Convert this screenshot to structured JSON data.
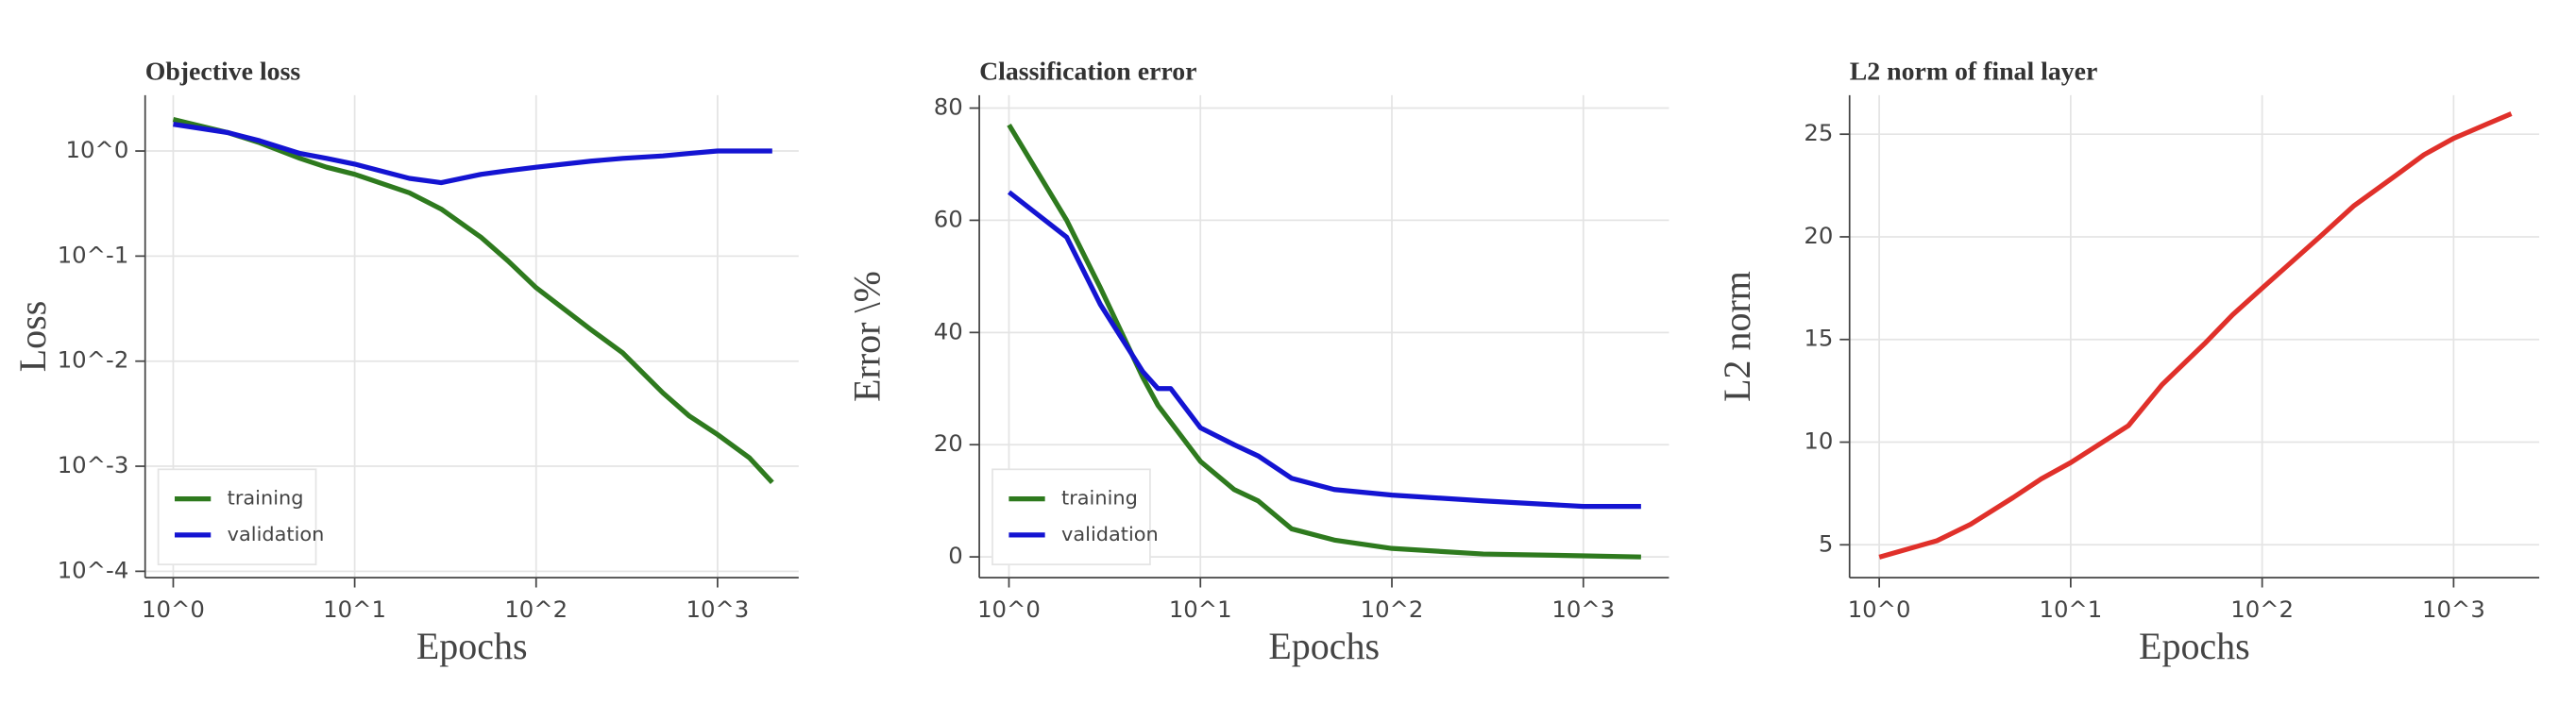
{
  "chart_data": [
    {
      "type": "line",
      "title": "Objective loss",
      "x_label": "Epochs",
      "y_label": "Loss",
      "x": [
        1,
        2,
        3,
        5,
        7,
        10,
        20,
        30,
        50,
        70,
        100,
        200,
        300,
        500,
        700,
        1000,
        1500,
        2000
      ],
      "series": [
        {
          "name": "training",
          "color": "#2e7a1e",
          "values": [
            2.0,
            1.5,
            1.2,
            0.85,
            0.7,
            0.6,
            0.4,
            0.28,
            0.15,
            0.09,
            0.05,
            0.02,
            0.012,
            0.005,
            0.003,
            0.002,
            0.0012,
            0.0007
          ]
        },
        {
          "name": "validation",
          "color": "#1414d2",
          "values": [
            1.8,
            1.5,
            1.25,
            0.95,
            0.85,
            0.75,
            0.55,
            0.5,
            0.6,
            0.65,
            0.7,
            0.8,
            0.85,
            0.9,
            0.95,
            1.0,
            1.0,
            1.0
          ]
        }
      ],
      "xscale": "log",
      "yscale": "log",
      "xlim": [
        0.7,
        2800
      ],
      "ylim": [
        8.7e-05,
        3.4
      ],
      "xticks": [
        {
          "value": 1,
          "label": "10^0"
        },
        {
          "value": 10,
          "label": "10^1"
        },
        {
          "value": 100,
          "label": "10^2"
        },
        {
          "value": 1000,
          "label": "10^3"
        }
      ],
      "yticks": [
        {
          "value": 0.0001,
          "label": "10^-4"
        },
        {
          "value": 0.001,
          "label": "10^-3"
        },
        {
          "value": 0.01,
          "label": "10^-2"
        },
        {
          "value": 0.1,
          "label": "10^-1"
        },
        {
          "value": 1,
          "label": "10^0"
        }
      ],
      "grid": true,
      "legend": "lower left"
    },
    {
      "type": "line",
      "title": "Classification error",
      "x_label": "Epochs",
      "y_label": "Error \\%",
      "x": [
        1,
        2,
        3,
        5,
        6,
        7,
        10,
        15,
        20,
        30,
        50,
        100,
        300,
        1000,
        2000
      ],
      "series": [
        {
          "name": "training",
          "color": "#2e7a1e",
          "values": [
            77,
            60,
            48,
            32,
            27,
            24,
            17,
            12,
            10,
            5,
            3,
            1.5,
            0.5,
            0.2,
            0
          ]
        },
        {
          "name": "validation",
          "color": "#1414d2",
          "values": [
            65,
            57,
            45,
            33,
            30,
            30,
            23,
            20,
            18,
            14,
            12,
            11,
            10,
            9,
            9
          ]
        }
      ],
      "xscale": "log",
      "yscale": "linear",
      "xlim": [
        0.7,
        2800
      ],
      "ylim": [
        -3.7,
        82.3
      ],
      "xticks": [
        {
          "value": 1,
          "label": "10^0"
        },
        {
          "value": 10,
          "label": "10^1"
        },
        {
          "value": 100,
          "label": "10^2"
        },
        {
          "value": 1000,
          "label": "10^3"
        }
      ],
      "yticks": [
        0,
        20,
        40,
        60,
        80
      ],
      "grid": true,
      "legend": "lower left"
    },
    {
      "type": "line",
      "title": "L2 norm of final layer",
      "x_label": "Epochs",
      "y_label": "L2 norm",
      "x": [
        1,
        2,
        3,
        5,
        7,
        10,
        20,
        30,
        50,
        70,
        100,
        200,
        300,
        500,
        700,
        1000,
        1500,
        2000
      ],
      "series": [
        {
          "name": "L2 norm",
          "color": "#e0302a",
          "values": [
            4.4,
            5.2,
            6.0,
            7.3,
            8.2,
            9.0,
            10.8,
            12.8,
            14.8,
            16.2,
            17.5,
            20.0,
            21.5,
            23.0,
            24.0,
            24.8,
            25.5,
            26.0
          ]
        }
      ],
      "xscale": "log",
      "yscale": "linear",
      "xlim": [
        0.7,
        2800
      ],
      "ylim": [
        3.4,
        26.9
      ],
      "xticks": [
        {
          "value": 1,
          "label": "10^0"
        },
        {
          "value": 10,
          "label": "10^1"
        },
        {
          "value": 100,
          "label": "10^2"
        },
        {
          "value": 1000,
          "label": "10^3"
        }
      ],
      "yticks": [
        5,
        10,
        15,
        20,
        25
      ],
      "grid": true
    }
  ]
}
